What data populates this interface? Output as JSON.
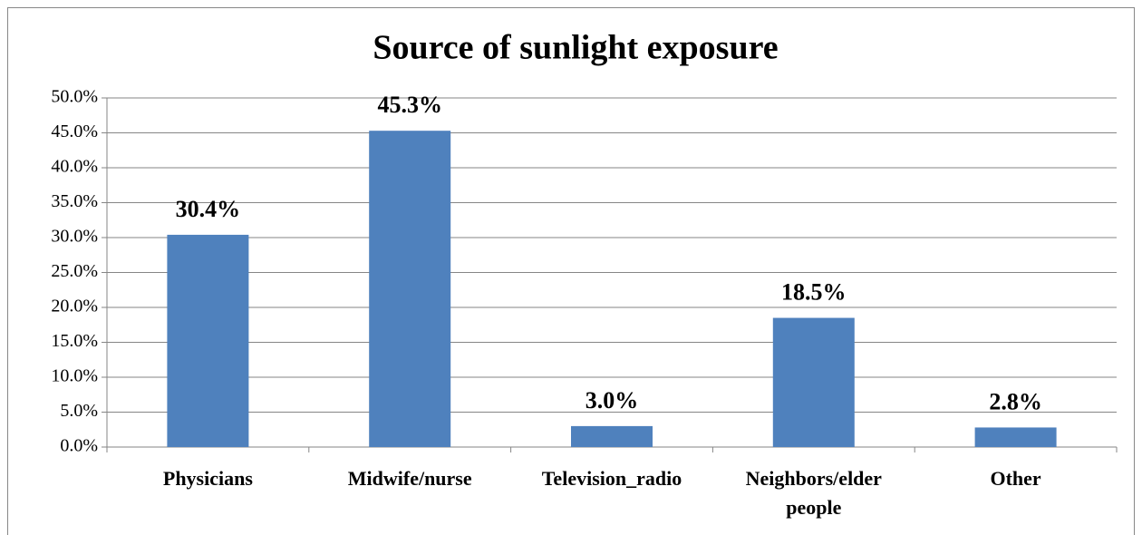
{
  "chart_data": {
    "type": "bar",
    "title": "Source of sunlight exposure",
    "categories": [
      "Physicians",
      "Midwife/nurse",
      "Television_radio",
      "Neighbors/elder people",
      "Other"
    ],
    "values": [
      30.4,
      45.3,
      3.0,
      18.5,
      2.8
    ],
    "value_labels": [
      "30.4%",
      "45.3%",
      "3.0%",
      "18.5%",
      "2.8%"
    ],
    "color": "#4f81bd",
    "ylim": [
      0,
      50
    ],
    "yticks": [
      {
        "value": 0,
        "label": "0.0%"
      },
      {
        "value": 5,
        "label": "5.0%"
      },
      {
        "value": 10,
        "label": "10.0%"
      },
      {
        "value": 15,
        "label": "15.0%"
      },
      {
        "value": 20,
        "label": "20.0%"
      },
      {
        "value": 25,
        "label": "25.0%"
      },
      {
        "value": 30,
        "label": "30.0%"
      },
      {
        "value": 35,
        "label": "35.0%"
      },
      {
        "value": 40,
        "label": "40.0%"
      },
      {
        "value": 45,
        "label": "45.0%"
      },
      {
        "value": 50,
        "label": "50.0%"
      }
    ],
    "grid": true
  }
}
